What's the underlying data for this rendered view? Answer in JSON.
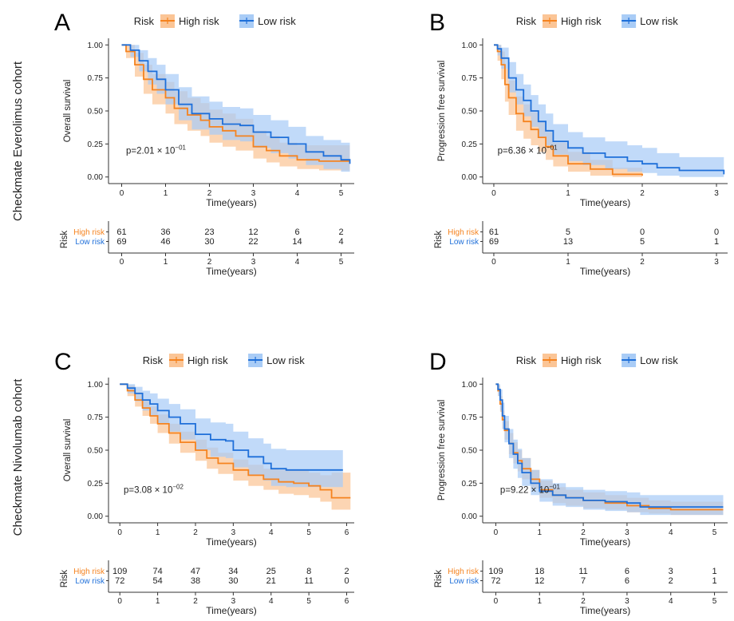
{
  "figure": {
    "cohort_labels": [
      "Checkmate Everolimus cohort",
      "Checkmate Nivolumab cohort"
    ]
  },
  "colors": {
    "high": "#F5831F",
    "low": "#1E6FD9",
    "high_band": "#FBC596",
    "low_band": "#A9CCF6",
    "axis": "#333333",
    "text": "#222222"
  },
  "chart_data": [
    {
      "type": "line",
      "panel_letter": "A",
      "ylabel": "Overall survival",
      "xlabel": "Time(years)",
      "xlim": [
        -0.3,
        5.3
      ],
      "ylim": [
        -0.05,
        1.05
      ],
      "xticks": [
        0,
        1,
        2,
        3,
        4,
        5
      ],
      "yticks": [
        "0.00",
        "0.25",
        "0.50",
        "0.75",
        "1.00"
      ],
      "legend": {
        "title": "Risk",
        "labels": [
          "High risk",
          "Low risk"
        ]
      },
      "p_value": {
        "base": "p=2.01 × 10",
        "exp": "−01",
        "x": 0.1,
        "y": 0.2
      },
      "series": [
        {
          "name": "High risk",
          "x": [
            0,
            0.1,
            0.3,
            0.5,
            0.7,
            1.0,
            1.2,
            1.5,
            1.8,
            2.0,
            2.3,
            2.6,
            3.0,
            3.3,
            3.6,
            4.0,
            4.5,
            5.0,
            5.2
          ],
          "y": [
            1.0,
            0.95,
            0.85,
            0.74,
            0.66,
            0.6,
            0.52,
            0.47,
            0.43,
            0.38,
            0.35,
            0.31,
            0.23,
            0.2,
            0.16,
            0.13,
            0.12,
            0.12,
            0.12
          ],
          "lower": [
            1.0,
            0.9,
            0.76,
            0.63,
            0.55,
            0.48,
            0.4,
            0.35,
            0.31,
            0.26,
            0.23,
            0.2,
            0.14,
            0.11,
            0.08,
            0.06,
            0.05,
            0.05,
            0.05
          ],
          "upper": [
            1.0,
            1.0,
            0.94,
            0.85,
            0.78,
            0.72,
            0.65,
            0.6,
            0.56,
            0.51,
            0.48,
            0.44,
            0.35,
            0.31,
            0.26,
            0.24,
            0.24,
            0.24,
            0.24
          ],
          "risk": [
            "61",
            "36",
            "23",
            "12",
            "6",
            "2"
          ]
        },
        {
          "name": "Low risk",
          "x": [
            0,
            0.2,
            0.4,
            0.6,
            0.8,
            1.0,
            1.3,
            1.6,
            2.0,
            2.3,
            2.7,
            3.0,
            3.4,
            3.8,
            4.2,
            4.6,
            5.0,
            5.2
          ],
          "y": [
            1.0,
            0.96,
            0.88,
            0.8,
            0.74,
            0.66,
            0.55,
            0.48,
            0.44,
            0.4,
            0.39,
            0.34,
            0.3,
            0.25,
            0.19,
            0.16,
            0.13,
            0.1
          ],
          "lower": [
            1.0,
            0.91,
            0.8,
            0.7,
            0.63,
            0.55,
            0.43,
            0.36,
            0.32,
            0.28,
            0.27,
            0.22,
            0.18,
            0.14,
            0.09,
            0.06,
            0.04,
            0.02
          ],
          "upper": [
            1.0,
            1.0,
            0.96,
            0.9,
            0.85,
            0.78,
            0.68,
            0.61,
            0.57,
            0.53,
            0.52,
            0.47,
            0.43,
            0.38,
            0.31,
            0.28,
            0.26,
            0.24
          ],
          "risk": [
            "69",
            "46",
            "30",
            "22",
            "14",
            "4"
          ]
        }
      ]
    },
    {
      "type": "line",
      "panel_letter": "B",
      "ylabel": "Progression free survival",
      "xlabel": "Time(years)",
      "xlim": [
        -0.15,
        3.15
      ],
      "ylim": [
        -0.05,
        1.05
      ],
      "xticks": [
        0,
        1,
        2,
        3
      ],
      "yticks": [
        "0.00",
        "0.25",
        "0.50",
        "0.75",
        "1.00"
      ],
      "legend": {
        "title": "Risk",
        "labels": [
          "High risk",
          "Low risk"
        ]
      },
      "p_value": {
        "base": "p=6.36 × 10",
        "exp": "−01",
        "x": 0.05,
        "y": 0.2
      },
      "series": [
        {
          "name": "High risk",
          "x": [
            0,
            0.05,
            0.1,
            0.15,
            0.2,
            0.3,
            0.4,
            0.5,
            0.6,
            0.7,
            0.8,
            1.0,
            1.3,
            1.6,
            2.0
          ],
          "y": [
            1.0,
            0.95,
            0.85,
            0.7,
            0.6,
            0.48,
            0.42,
            0.36,
            0.3,
            0.23,
            0.16,
            0.1,
            0.06,
            0.02,
            0.01
          ],
          "lower": [
            1.0,
            0.88,
            0.74,
            0.57,
            0.47,
            0.35,
            0.29,
            0.24,
            0.19,
            0.13,
            0.08,
            0.04,
            0.01,
            0.0,
            0.0
          ],
          "upper": [
            1.0,
            1.0,
            0.95,
            0.82,
            0.73,
            0.61,
            0.55,
            0.49,
            0.42,
            0.34,
            0.26,
            0.19,
            0.13,
            0.07,
            0.06
          ],
          "risk": [
            "61",
            "5",
            "0",
            "0"
          ]
        },
        {
          "name": "Low risk",
          "x": [
            0,
            0.05,
            0.1,
            0.2,
            0.3,
            0.4,
            0.5,
            0.6,
            0.7,
            0.8,
            1.0,
            1.2,
            1.5,
            1.8,
            2.0,
            2.2,
            2.5,
            3.1
          ],
          "y": [
            1.0,
            0.97,
            0.9,
            0.75,
            0.66,
            0.58,
            0.5,
            0.42,
            0.35,
            0.27,
            0.22,
            0.18,
            0.15,
            0.12,
            0.1,
            0.07,
            0.05,
            0.02
          ],
          "lower": [
            1.0,
            0.92,
            0.82,
            0.64,
            0.55,
            0.46,
            0.38,
            0.3,
            0.24,
            0.17,
            0.12,
            0.09,
            0.06,
            0.04,
            0.03,
            0.01,
            0.0,
            0.0
          ],
          "upper": [
            1.0,
            1.0,
            0.98,
            0.87,
            0.78,
            0.7,
            0.62,
            0.55,
            0.48,
            0.4,
            0.34,
            0.3,
            0.27,
            0.24,
            0.22,
            0.18,
            0.15,
            0.12
          ],
          "risk": [
            "69",
            "13",
            "5",
            "1"
          ]
        }
      ]
    },
    {
      "type": "line",
      "panel_letter": "C",
      "ylabel": "Overall survival",
      "xlabel": "Time(years)",
      "xlim": [
        -0.3,
        6.2
      ],
      "ylim": [
        -0.05,
        1.05
      ],
      "xticks": [
        0,
        1,
        2,
        3,
        4,
        5,
        6
      ],
      "yticks": [
        "0.00",
        "0.25",
        "0.50",
        "0.75",
        "1.00"
      ],
      "legend": {
        "title": "Risk",
        "labels": [
          "High risk",
          "Low risk"
        ]
      },
      "p_value": {
        "base": "p=3.08 × 10",
        "exp": "−02",
        "x": 0.1,
        "y": 0.2
      },
      "series": [
        {
          "name": "High risk",
          "x": [
            0,
            0.2,
            0.4,
            0.6,
            0.8,
            1.0,
            1.3,
            1.6,
            2.0,
            2.3,
            2.6,
            3.0,
            3.4,
            3.8,
            4.2,
            4.6,
            5.0,
            5.3,
            5.6,
            6.1
          ],
          "y": [
            1.0,
            0.95,
            0.88,
            0.82,
            0.76,
            0.7,
            0.63,
            0.56,
            0.5,
            0.44,
            0.4,
            0.35,
            0.31,
            0.28,
            0.26,
            0.25,
            0.23,
            0.2,
            0.14,
            0.14
          ],
          "lower": [
            1.0,
            0.91,
            0.83,
            0.76,
            0.7,
            0.63,
            0.55,
            0.48,
            0.42,
            0.36,
            0.32,
            0.27,
            0.23,
            0.2,
            0.17,
            0.16,
            0.14,
            0.11,
            0.05,
            0.05
          ],
          "upper": [
            1.0,
            0.99,
            0.94,
            0.88,
            0.83,
            0.77,
            0.7,
            0.64,
            0.58,
            0.52,
            0.48,
            0.43,
            0.39,
            0.36,
            0.35,
            0.35,
            0.33,
            0.31,
            0.33,
            0.33
          ],
          "risk": [
            "109",
            "74",
            "47",
            "34",
            "25",
            "8",
            "2"
          ]
        },
        {
          "name": "Low risk",
          "x": [
            0,
            0.2,
            0.4,
            0.6,
            0.8,
            1.0,
            1.3,
            1.6,
            2.0,
            2.4,
            2.8,
            3.0,
            3.4,
            3.8,
            4.0,
            4.4,
            5.0,
            5.5,
            5.9
          ],
          "y": [
            1.0,
            0.97,
            0.93,
            0.88,
            0.85,
            0.8,
            0.75,
            0.7,
            0.62,
            0.58,
            0.57,
            0.5,
            0.45,
            0.4,
            0.36,
            0.35,
            0.35,
            0.35,
            0.35
          ],
          "lower": [
            1.0,
            0.93,
            0.87,
            0.8,
            0.76,
            0.7,
            0.64,
            0.58,
            0.5,
            0.45,
            0.44,
            0.37,
            0.31,
            0.27,
            0.23,
            0.22,
            0.22,
            0.22,
            0.22
          ],
          "upper": [
            1.0,
            1.0,
            0.98,
            0.95,
            0.93,
            0.89,
            0.85,
            0.81,
            0.74,
            0.71,
            0.7,
            0.64,
            0.59,
            0.55,
            0.51,
            0.5,
            0.5,
            0.5,
            0.5
          ],
          "risk": [
            "72",
            "54",
            "38",
            "30",
            "21",
            "11",
            "0"
          ]
        }
      ]
    },
    {
      "type": "line",
      "panel_letter": "D",
      "ylabel": "Progression free survival",
      "xlabel": "Time(years)",
      "xlim": [
        -0.3,
        5.3
      ],
      "ylim": [
        -0.05,
        1.05
      ],
      "xticks": [
        0,
        1,
        2,
        3,
        4,
        5
      ],
      "yticks": [
        "0.00",
        "0.25",
        "0.50",
        "0.75",
        "1.00"
      ],
      "legend": {
        "title": "Risk",
        "labels": [
          "High risk",
          "Low risk"
        ]
      },
      "p_value": {
        "base": "p=9.22 × 10",
        "exp": "−01",
        "x": 0.1,
        "y": 0.2
      },
      "series": [
        {
          "name": "High risk",
          "x": [
            0,
            0.05,
            0.1,
            0.15,
            0.2,
            0.3,
            0.4,
            0.5,
            0.6,
            0.8,
            1.0,
            1.3,
            1.6,
            2.0,
            2.5,
            3.0,
            3.5,
            4.0,
            4.5,
            5.2
          ],
          "y": [
            1.0,
            0.95,
            0.85,
            0.73,
            0.65,
            0.55,
            0.48,
            0.42,
            0.36,
            0.28,
            0.2,
            0.16,
            0.14,
            0.12,
            0.1,
            0.08,
            0.06,
            0.05,
            0.05,
            0.05
          ],
          "lower": [
            1.0,
            0.91,
            0.79,
            0.66,
            0.58,
            0.47,
            0.4,
            0.34,
            0.28,
            0.21,
            0.14,
            0.1,
            0.08,
            0.06,
            0.05,
            0.03,
            0.02,
            0.01,
            0.01,
            0.01
          ],
          "upper": [
            1.0,
            0.99,
            0.91,
            0.8,
            0.72,
            0.63,
            0.56,
            0.5,
            0.44,
            0.35,
            0.27,
            0.22,
            0.2,
            0.18,
            0.16,
            0.14,
            0.12,
            0.11,
            0.11,
            0.11
          ],
          "risk": [
            "109",
            "18",
            "11",
            "6",
            "3",
            "1"
          ]
        },
        {
          "name": "Low risk",
          "x": [
            0,
            0.05,
            0.1,
            0.15,
            0.2,
            0.3,
            0.4,
            0.5,
            0.6,
            0.8,
            1.0,
            1.3,
            1.6,
            2.0,
            2.5,
            3.0,
            3.3,
            4.0,
            4.5,
            5.2
          ],
          "y": [
            1.0,
            0.96,
            0.88,
            0.76,
            0.66,
            0.55,
            0.47,
            0.4,
            0.33,
            0.25,
            0.19,
            0.16,
            0.14,
            0.12,
            0.11,
            0.1,
            0.07,
            0.07,
            0.07,
            0.07
          ],
          "lower": [
            1.0,
            0.91,
            0.8,
            0.66,
            0.56,
            0.44,
            0.36,
            0.29,
            0.23,
            0.16,
            0.11,
            0.08,
            0.07,
            0.05,
            0.04,
            0.03,
            0.01,
            0.01,
            0.01,
            0.01
          ],
          "upper": [
            1.0,
            1.0,
            0.96,
            0.86,
            0.76,
            0.66,
            0.58,
            0.51,
            0.44,
            0.35,
            0.28,
            0.25,
            0.22,
            0.2,
            0.19,
            0.18,
            0.16,
            0.16,
            0.16,
            0.16
          ],
          "risk": [
            "72",
            "12",
            "7",
            "6",
            "2",
            "1"
          ]
        }
      ]
    }
  ]
}
